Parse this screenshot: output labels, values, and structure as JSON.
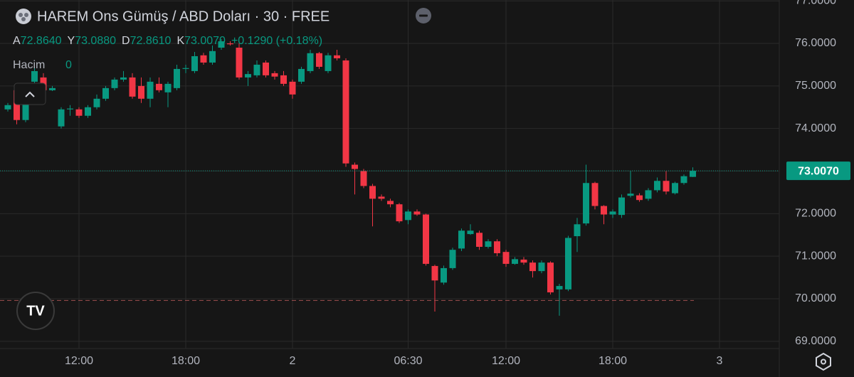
{
  "chart_data": {
    "type": "candlestick",
    "title": "HAREM Ons Gümüş / ABD Doları · 30 · FREE",
    "ohlc_legend": [
      {
        "label": "A",
        "value": "72.8640"
      },
      {
        "label": "Y",
        "value": "73.0880"
      },
      {
        "label": "D",
        "value": "72.8610"
      },
      {
        "label": "K",
        "value": "73.0070"
      }
    ],
    "change": "+0.1290 (+0.18%)",
    "volume_label": "Hacim",
    "volume_value": "0",
    "up_color": "#089981",
    "down_color": "#f23645",
    "grid": true,
    "xlim": [
      7.56,
      51.36
    ],
    "xticks": [
      {
        "value": 12,
        "label": "12:00"
      },
      {
        "value": 18,
        "label": "18:00"
      },
      {
        "value": 24,
        "label": "2"
      },
      {
        "value": 30.5,
        "label": "06:30"
      },
      {
        "value": 36,
        "label": "12:00"
      },
      {
        "value": 42,
        "label": "18:00"
      },
      {
        "value": 48,
        "label": "3"
      }
    ],
    "ylim": [
      68.83,
      77.02
    ],
    "yticks": [
      {
        "value": 69,
        "label": "69.0000"
      },
      {
        "value": 70,
        "label": "70.0000"
      },
      {
        "value": 71,
        "label": "71.0000"
      },
      {
        "value": 72,
        "label": "72.0000"
      },
      {
        "value": 73,
        "label": "73.0000"
      },
      {
        "value": 74,
        "label": "74.0000"
      },
      {
        "value": 75,
        "label": "75.0000"
      },
      {
        "value": 76,
        "label": "76.0000"
      },
      {
        "value": 77,
        "label": "77.0000"
      }
    ],
    "last_price": {
      "value": 73.007,
      "label": "73.0070"
    },
    "reference_line": 69.96,
    "x": [
      8,
      8.5,
      9,
      9.5,
      10,
      10.5,
      11,
      11.5,
      12,
      12.5,
      13,
      13.5,
      14,
      14.5,
      15,
      15.5,
      16,
      16.5,
      17,
      17.5,
      18,
      18.5,
      19,
      19.5,
      20,
      20.5,
      21,
      21.5,
      22,
      22.5,
      23,
      23.5,
      24,
      24.5,
      25,
      25.5,
      26,
      26.5,
      27,
      27.5,
      28,
      28.5,
      29,
      29.5,
      30,
      30.5,
      31,
      31.5,
      32,
      32.5,
      33,
      33.5,
      34,
      34.5,
      35,
      35.5,
      36,
      36.5,
      37,
      37.5,
      38,
      38.5,
      39,
      39.5,
      40,
      40.5,
      41,
      41.5,
      42,
      42.5,
      43,
      43.5,
      44,
      44.5,
      45,
      45.5,
      46,
      46.5
    ],
    "open": [
      74.45,
      74.9,
      74.2,
      75.1,
      75.2,
      74.9,
      74.05,
      74.45,
      74.45,
      74.3,
      74.5,
      74.7,
      74.95,
      75.15,
      75.2,
      75.0,
      74.7,
      75.05,
      74.85,
      74.95,
      75.4,
      75.35,
      75.72,
      75.55,
      75.9,
      76.0,
      75.9,
      75.2,
      75.25,
      75.55,
      75.3,
      75.25,
      75.1,
      75.1,
      75.35,
      75.77,
      75.35,
      75.72,
      75.6,
      73.15,
      73.0,
      72.65,
      72.4,
      72.3,
      72.22,
      71.85,
      72.05,
      71.98,
      70.77,
      70.38,
      70.72,
      71.18,
      71.52,
      71.55,
      71.22,
      71.35,
      71.1,
      70.82,
      70.92,
      70.85,
      70.65,
      70.85,
      70.22,
      70.22,
      71.47,
      71.77,
      72.72,
      72.18,
      71.98,
      71.97,
      72.42,
      72.43,
      72.35,
      72.55,
      72.77,
      72.48,
      72.72,
      72.864
    ],
    "high": [
      74.6,
      75.0,
      75.0,
      75.45,
      75.3,
      75.0,
      74.5,
      74.55,
      74.5,
      74.55,
      74.8,
      75.0,
      75.2,
      75.35,
      75.3,
      75.2,
      75.2,
      75.2,
      75.1,
      75.5,
      75.5,
      75.8,
      75.78,
      75.95,
      76.1,
      76.05,
      76.0,
      75.35,
      75.6,
      75.6,
      75.35,
      75.35,
      75.15,
      75.45,
      75.85,
      75.8,
      75.78,
      75.85,
      75.65,
      73.2,
      73.05,
      72.7,
      72.45,
      72.35,
      72.25,
      72.1,
      72.1,
      72.0,
      70.8,
      70.78,
      71.2,
      71.65,
      71.75,
      71.6,
      71.4,
      71.4,
      71.15,
      70.98,
      70.98,
      70.9,
      70.9,
      70.88,
      70.35,
      71.48,
      71.9,
      73.15,
      72.75,
      72.2,
      72.1,
      72.45,
      73.0,
      72.48,
      72.6,
      72.85,
      73.0,
      72.75,
      72.92,
      73.088
    ],
    "low": [
      74.4,
      74.1,
      74.15,
      75.0,
      74.85,
      74.88,
      74.0,
      74.3,
      74.25,
      74.25,
      74.45,
      74.65,
      74.9,
      75.1,
      74.7,
      74.6,
      74.5,
      74.85,
      74.5,
      74.9,
      75.3,
      75.3,
      75.5,
      75.5,
      75.85,
      75.95,
      75.15,
      75.0,
      75.2,
      75.2,
      75.15,
      75.0,
      74.7,
      75.05,
      75.3,
      75.4,
      75.3,
      75.6,
      73.1,
      72.45,
      72.6,
      71.7,
      72.3,
      72.15,
      71.78,
      71.75,
      71.95,
      70.78,
      69.7,
      70.33,
      70.68,
      71.12,
      71.5,
      71.15,
      71.18,
      71.0,
      70.75,
      70.8,
      70.8,
      70.5,
      70.6,
      70.1,
      69.6,
      70.18,
      71.1,
      71.72,
      72.1,
      71.75,
      71.9,
      71.9,
      72.38,
      72.28,
      72.3,
      72.5,
      72.45,
      72.45,
      72.68,
      72.861
    ],
    "close": [
      74.55,
      74.2,
      74.85,
      75.35,
      74.9,
      74.95,
      74.45,
      74.47,
      74.3,
      74.5,
      74.7,
      74.95,
      75.15,
      75.2,
      74.75,
      74.7,
      75.1,
      74.9,
      75.05,
      75.4,
      75.42,
      75.7,
      75.55,
      75.82,
      76.05,
      75.98,
      75.2,
      75.28,
      75.5,
      75.25,
      75.22,
      75.05,
      74.8,
      75.4,
      75.77,
      75.45,
      75.72,
      75.65,
      73.18,
      73.05,
      72.65,
      72.35,
      72.35,
      72.22,
      71.82,
      72.05,
      71.98,
      70.82,
      70.43,
      70.72,
      71.15,
      71.6,
      71.6,
      71.22,
      71.35,
      71.07,
      70.82,
      70.93,
      70.85,
      70.65,
      70.85,
      70.15,
      70.3,
      71.43,
      71.75,
      72.72,
      72.18,
      71.98,
      72.05,
      72.38,
      72.47,
      72.32,
      72.55,
      72.77,
      72.52,
      72.72,
      72.88,
      73.007
    ]
  }
}
